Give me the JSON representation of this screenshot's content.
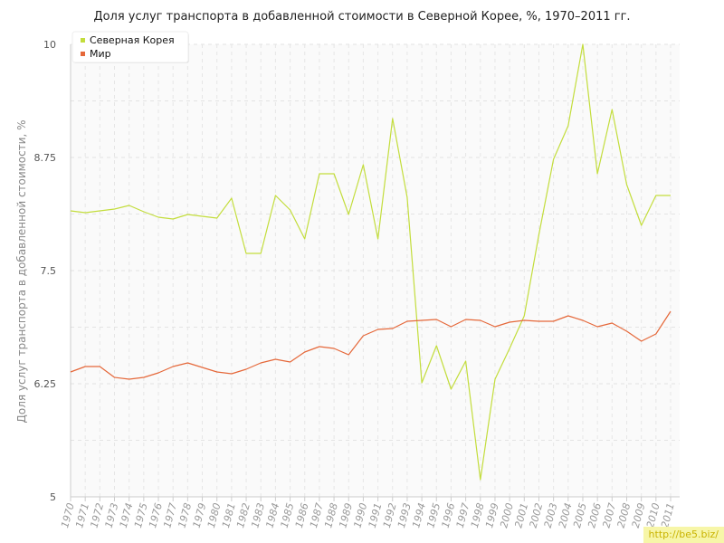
{
  "chart_data": {
    "type": "line",
    "title": "Доля услуг транспорта в добавленной стоимости в Северной Корее, %, 1970–2011 гг.",
    "xlabel": "",
    "ylabel": "Доля услуг транспорта в добавленной стоимости, %",
    "ylim": [
      5,
      10
    ],
    "y_ticks": [
      "5",
      "6.25",
      "7.5",
      "8.75",
      "10"
    ],
    "y_tick_values": [
      5,
      6.25,
      7.5,
      8.75,
      10
    ],
    "grid": true,
    "legend_position": "top-left",
    "x": [
      "1970",
      "1971",
      "1972",
      "1973",
      "1974",
      "1975",
      "1976",
      "1977",
      "1978",
      "1979",
      "1980",
      "1981",
      "1982",
      "1983",
      "1984",
      "1985",
      "1986",
      "1987",
      "1988",
      "1989",
      "1990",
      "1991",
      "1992",
      "1993",
      "1994",
      "1995",
      "1996",
      "1997",
      "1998",
      "1999",
      "2000",
      "2001",
      "2002",
      "2003",
      "2004",
      "2005",
      "2006",
      "2007",
      "2008",
      "2009",
      "2010",
      "2011"
    ],
    "series": [
      {
        "name": "Северная Корея",
        "color": "#c3dd3c",
        "values": [
          8.16,
          8.14,
          8.16,
          8.18,
          8.22,
          8.15,
          8.09,
          8.07,
          8.12,
          8.1,
          8.08,
          8.3,
          7.69,
          7.69,
          8.33,
          8.17,
          7.85,
          8.57,
          8.57,
          8.12,
          8.67,
          7.85,
          9.18,
          8.31,
          6.26,
          6.67,
          6.19,
          6.5,
          5.19,
          6.3,
          6.64,
          7.0,
          7.9,
          8.73,
          9.1,
          10.0,
          8.57,
          9.28,
          8.45,
          8.0,
          8.33,
          8.33
        ]
      },
      {
        "name": "Мир",
        "color": "#e5683a",
        "values": [
          6.38,
          6.44,
          6.44,
          6.32,
          6.3,
          6.32,
          6.37,
          6.44,
          6.48,
          6.43,
          6.38,
          6.36,
          6.41,
          6.48,
          6.52,
          6.49,
          6.6,
          6.66,
          6.64,
          6.57,
          6.78,
          6.85,
          6.86,
          6.94,
          6.95,
          6.96,
          6.88,
          6.96,
          6.95,
          6.88,
          6.93,
          6.95,
          6.94,
          6.94,
          7.0,
          6.95,
          6.88,
          6.92,
          6.83,
          6.72,
          6.8,
          7.05
        ]
      }
    ]
  },
  "watermark": "http://be5.biz/"
}
